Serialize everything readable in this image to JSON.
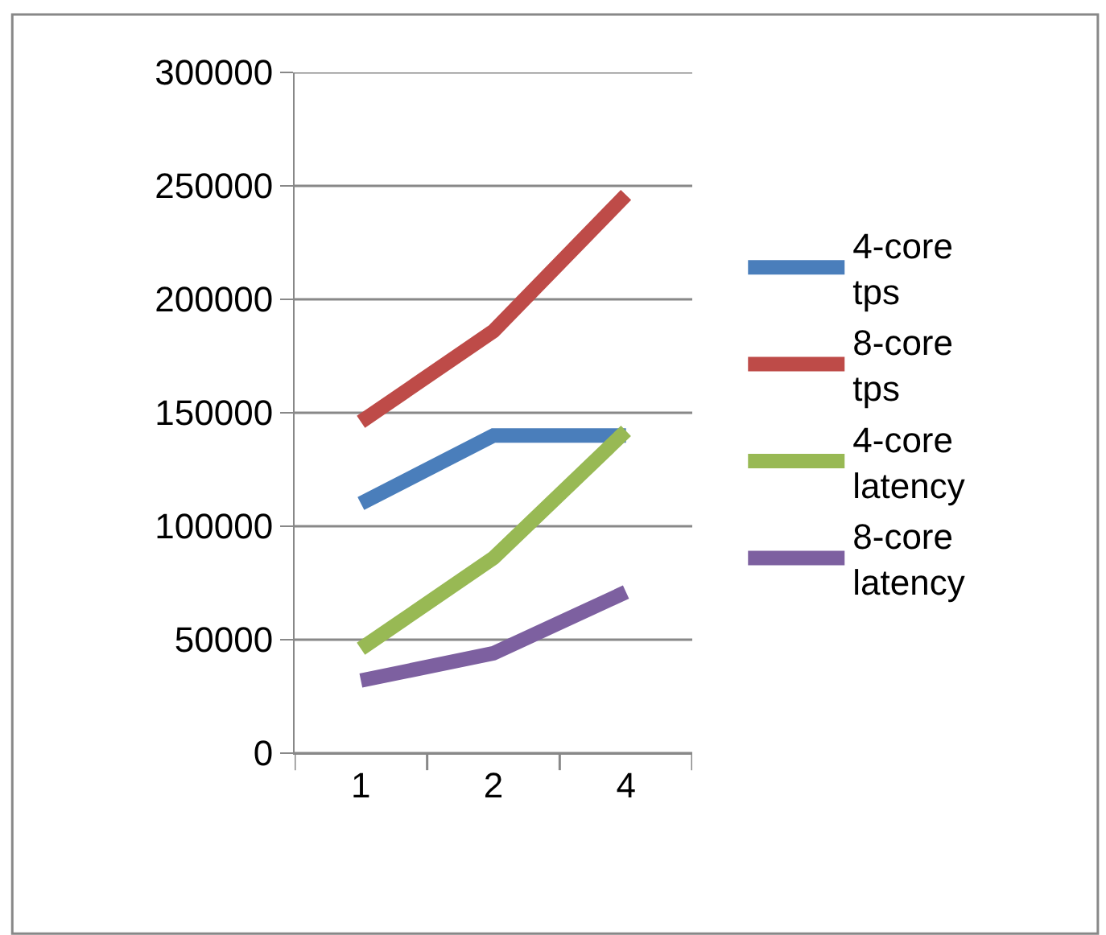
{
  "chart_data": {
    "type": "line",
    "categories": [
      "1",
      "2",
      "4"
    ],
    "ylim": [
      0,
      300000
    ],
    "yticks": [
      0,
      50000,
      100000,
      150000,
      200000,
      250000,
      300000
    ],
    "grid": "y",
    "legend": "right",
    "series": [
      {
        "name": "4-core tps",
        "color": "#4a7ebb",
        "values": [
          110000,
          140000,
          140000
        ]
      },
      {
        "name": "8-core tps",
        "color": "#be4b48",
        "values": [
          146000,
          186000,
          246000
        ]
      },
      {
        "name": "4-core latency",
        "color": "#98b954",
        "values": [
          46000,
          86000,
          142000
        ]
      },
      {
        "name": "8-core latency",
        "color": "#7d60a0",
        "values": [
          32000,
          44000,
          71000
        ]
      }
    ]
  }
}
